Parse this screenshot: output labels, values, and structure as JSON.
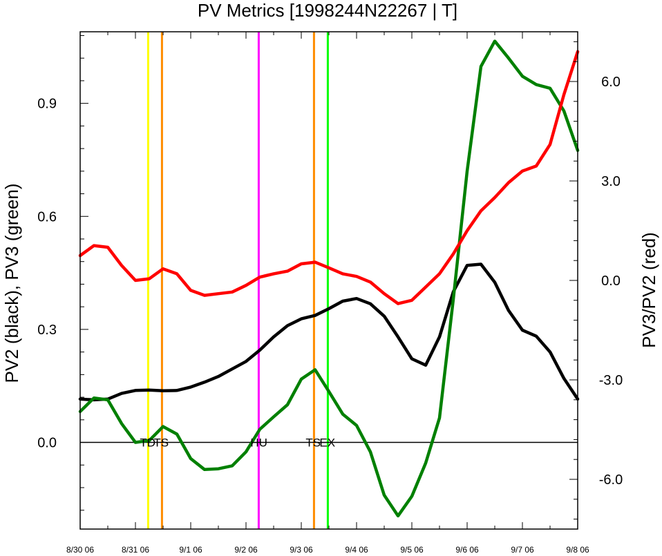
{
  "chart_data": {
    "type": "line",
    "title": "PV Metrics [1998244N22267 | T]",
    "ylabel_left": "PV2 (black), PV3 (green)",
    "ylabel_right": "PV3/PV2 (red)",
    "xlim": [
      0,
      9
    ],
    "ylim_left": [
      -0.23,
      1.09
    ],
    "ylim_right": [
      -7.5,
      7.5
    ],
    "x_tick_labels": [
      "8/30 06",
      "8/31 06",
      "9/1 06",
      "9/2 06",
      "9/3 06",
      "9/4 06",
      "9/5 06",
      "9/6 06",
      "9/7 06",
      "9/8 06"
    ],
    "y_left_ticks": [
      0.0,
      0.3,
      0.6,
      0.9
    ],
    "y_left_tick_labels": [
      "0.0",
      "0.3",
      "0.6",
      "0.9"
    ],
    "y_right_ticks": [
      -6,
      -3,
      0,
      3,
      6
    ],
    "y_right_tick_labels": [
      "-6.0",
      "-3.0",
      "0.0",
      "3.0",
      "6.0"
    ],
    "zero_line": 0,
    "x": [
      0,
      0.25,
      0.5,
      0.75,
      1.0,
      1.25,
      1.5,
      1.75,
      2.0,
      2.25,
      2.5,
      2.75,
      3.0,
      3.25,
      3.5,
      3.75,
      4.0,
      4.25,
      4.5,
      4.75,
      5.0,
      5.25,
      5.5,
      5.75,
      6.0,
      6.25,
      6.5,
      6.75,
      7.0,
      7.25,
      7.5,
      7.75,
      8.0,
      8.25,
      8.5,
      8.75,
      9.0
    ],
    "series": [
      {
        "name": "PV2",
        "axis": "left",
        "color": "#000000",
        "values": [
          0.115,
          0.113,
          0.115,
          0.13,
          0.138,
          0.139,
          0.137,
          0.138,
          0.147,
          0.16,
          0.175,
          0.195,
          0.215,
          0.245,
          0.28,
          0.31,
          0.328,
          0.337,
          0.355,
          0.375,
          0.382,
          0.368,
          0.335,
          0.28,
          0.222,
          0.205,
          0.28,
          0.4,
          0.47,
          0.473,
          0.425,
          0.35,
          0.298,
          0.282,
          0.24,
          0.17,
          0.115
        ]
      },
      {
        "name": "PV3",
        "axis": "left",
        "color": "#008000",
        "values": [
          0.082,
          0.118,
          0.113,
          0.05,
          0.0,
          0.005,
          0.042,
          0.022,
          -0.043,
          -0.072,
          -0.07,
          -0.062,
          -0.025,
          0.035,
          0.068,
          0.1,
          0.168,
          0.193,
          0.135,
          0.075,
          0.045,
          -0.025,
          -0.14,
          -0.195,
          -0.143,
          -0.055,
          0.065,
          0.38,
          0.72,
          0.998,
          1.065,
          1.02,
          0.972,
          0.95,
          0.94,
          0.88,
          0.775
        ]
      },
      {
        "name": "PV3/PV2",
        "axis": "right",
        "color": "#ff0000",
        "values": [
          0.75,
          1.05,
          1.0,
          0.45,
          0.0,
          0.05,
          0.35,
          0.2,
          -0.3,
          -0.45,
          -0.4,
          -0.35,
          -0.15,
          0.1,
          0.2,
          0.28,
          0.5,
          0.55,
          0.38,
          0.2,
          0.12,
          -0.05,
          -0.4,
          -0.7,
          -0.6,
          -0.2,
          0.2,
          0.8,
          1.5,
          2.1,
          2.5,
          2.95,
          3.3,
          3.45,
          4.1,
          5.6,
          6.9
        ]
      }
    ],
    "stage_markers": [
      {
        "x": 1.23,
        "label": "TD",
        "color": "#ffff00"
      },
      {
        "x": 1.48,
        "label": "TS",
        "color": "#ff8c00"
      },
      {
        "x": 3.23,
        "label": "HU",
        "color": "#ff00ff"
      },
      {
        "x": 4.23,
        "label": "TS",
        "color": "#ff8c00"
      },
      {
        "x": 4.48,
        "label": "EX",
        "color": "#00ff00"
      }
    ],
    "grid": false
  }
}
